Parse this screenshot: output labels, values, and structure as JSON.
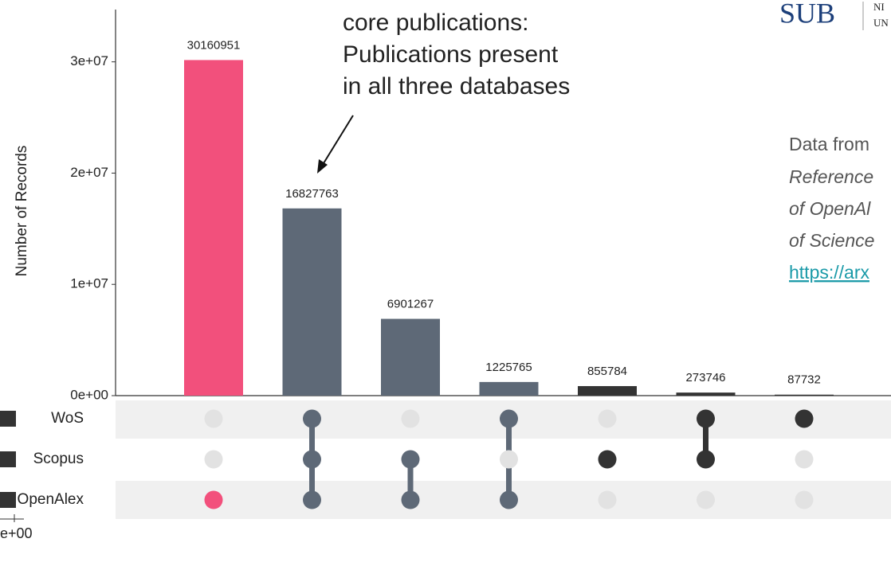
{
  "chart_data": {
    "type": "upset",
    "ylabel": "Number of Records",
    "annotation": [
      "core publications:",
      "Publications present",
      "in all three databases"
    ],
    "side_text": [
      "Data from",
      "Reference",
      "of OpenAl",
      "of Science",
      "https://arx"
    ],
    "logo": {
      "mark": "SUB",
      "lines": [
        "NI",
        "UN"
      ]
    },
    "cropped_tick": "e+00",
    "sets": [
      "WoS",
      "Scopus",
      "OpenAlex"
    ],
    "values": [
      30160951,
      16827763,
      6901267,
      1225765,
      855784,
      273746,
      87732
    ],
    "colors": [
      "#f2507c",
      "#5e6977",
      "#5e6977",
      "#5e6977",
      "#333333",
      "#333333",
      "#333333"
    ],
    "membership": [
      [
        false,
        false,
        true
      ],
      [
        true,
        true,
        true
      ],
      [
        false,
        true,
        true
      ],
      [
        true,
        false,
        true
      ],
      [
        false,
        true,
        false
      ],
      [
        true,
        true,
        false
      ],
      [
        true,
        false,
        false
      ]
    ],
    "ylim": [
      0,
      34700000
    ],
    "yticks": [
      {
        "value": 0,
        "label": "0e+00"
      },
      {
        "value": 10000000,
        "label": "1e+07"
      },
      {
        "value": 20000000,
        "label": "2e+07"
      },
      {
        "value": 30000000,
        "label": "3e+07"
      }
    ]
  }
}
